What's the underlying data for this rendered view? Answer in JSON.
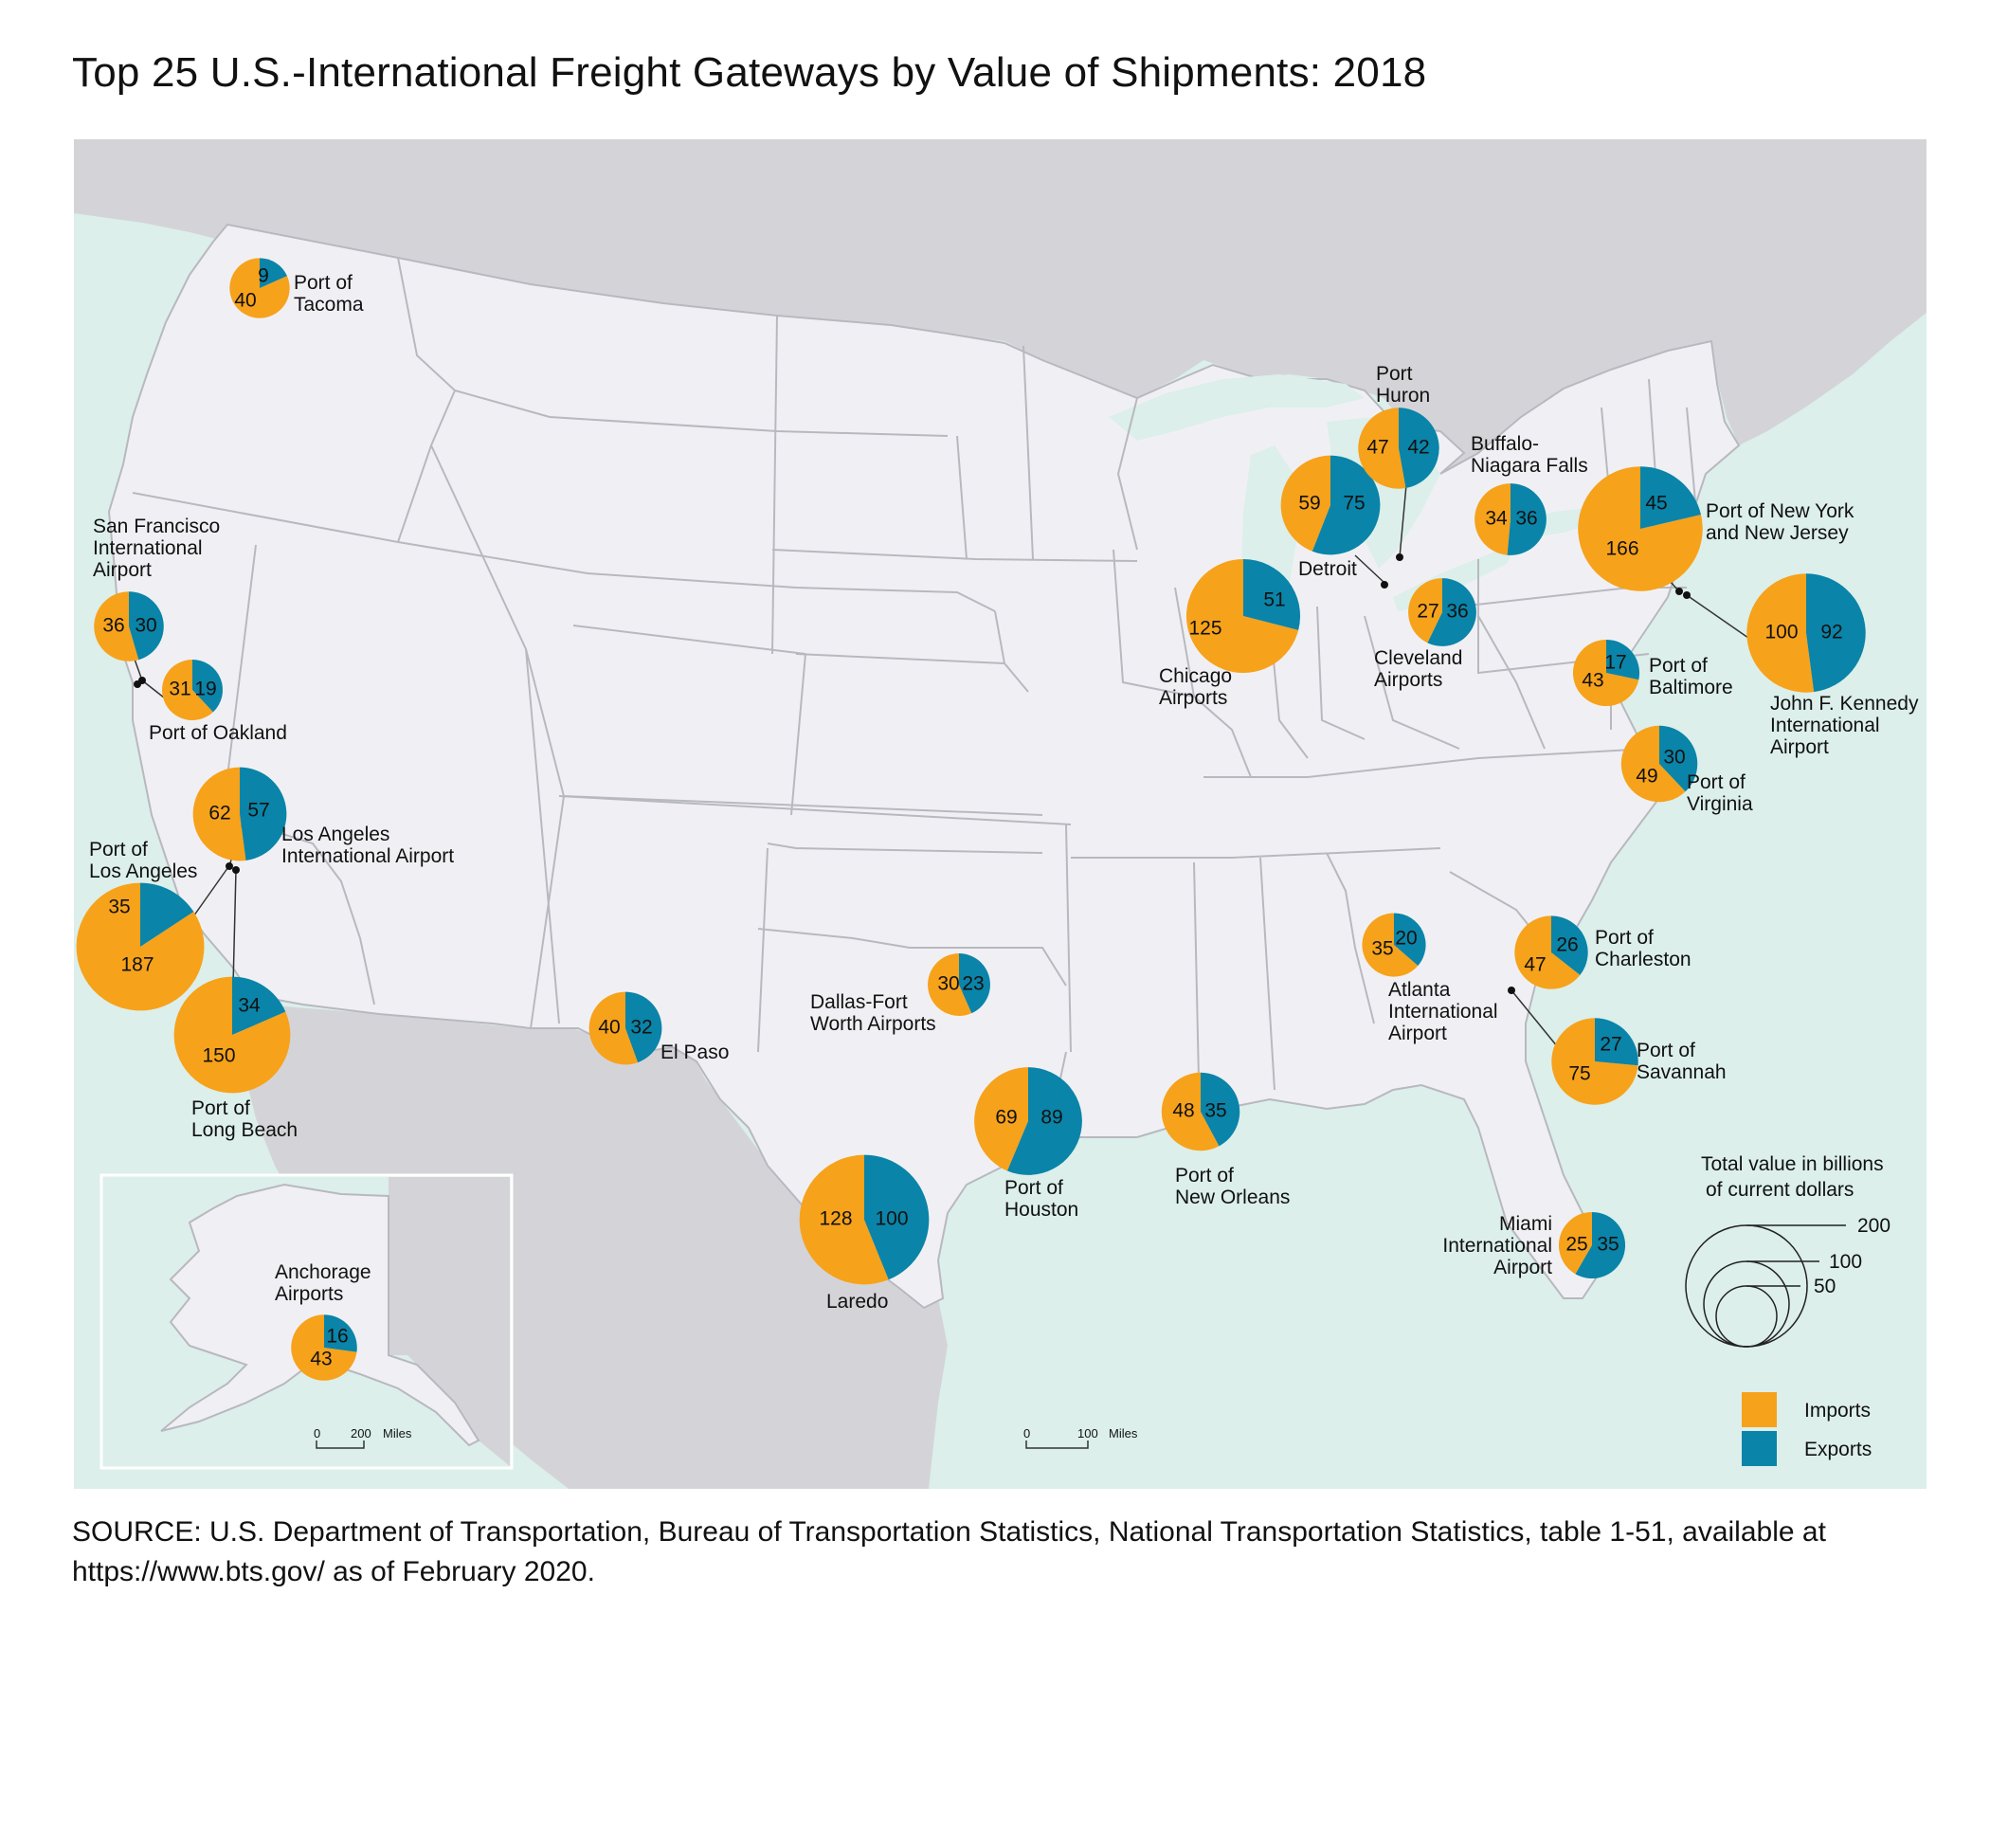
{
  "title": "Top 25 U.S.-International Freight Gateways by Value of Shipments: 2018",
  "source": {
    "line1": "SOURCE: U.S. Department of Transportation, Bureau of Transportation Statistics, National Transportation Statistics, table 1-51, available at",
    "line2": "https://www.bts.gov/ as of February 2020."
  },
  "colors": {
    "imports": "#F7A21B",
    "exports": "#0A84A8",
    "water": "#DCEFEA",
    "canada_mexico": "#D4D4D8",
    "us_land": "#F0F0F4",
    "borders": "#B8B8C0"
  },
  "legend": {
    "title_line1": "Total value in billions",
    "title_line2": "of current dollars",
    "sizes": [
      "200",
      "100",
      "50"
    ],
    "imports_label": "Imports",
    "exports_label": "Exports"
  },
  "scale_main": {
    "zero": "0",
    "value": "100",
    "unit": "Miles"
  },
  "scale_inset": {
    "zero": "0",
    "value": "200",
    "unit": "Miles"
  },
  "chart_data": {
    "type": "pie",
    "unit": "billions of current dollars",
    "series": [
      {
        "name": "Imports"
      },
      {
        "name": "Exports"
      }
    ],
    "gateways": [
      {
        "name_lines": [
          "Port of",
          "Tacoma"
        ],
        "imports": 40,
        "exports": 9
      },
      {
        "name_lines": [
          "San Francisco",
          "International",
          "Airport"
        ],
        "imports": 36,
        "exports": 30
      },
      {
        "name_lines": [
          "Port of Oakland"
        ],
        "imports": 31,
        "exports": 19
      },
      {
        "name_lines": [
          "Los Angeles",
          "International Airport"
        ],
        "imports": 62,
        "exports": 57
      },
      {
        "name_lines": [
          "Port of",
          "Los Angeles"
        ],
        "imports": 187,
        "exports": 35
      },
      {
        "name_lines": [
          "Port of",
          "Long Beach"
        ],
        "imports": 150,
        "exports": 34
      },
      {
        "name_lines": [
          "El Paso"
        ],
        "imports": 40,
        "exports": 32
      },
      {
        "name_lines": [
          "Dallas-Fort",
          "Worth Airports"
        ],
        "imports": 30,
        "exports": 23
      },
      {
        "name_lines": [
          "Laredo"
        ],
        "imports": 128,
        "exports": 100
      },
      {
        "name_lines": [
          "Port of",
          "Houston"
        ],
        "imports": 69,
        "exports": 89
      },
      {
        "name_lines": [
          "Port of",
          "New Orleans"
        ],
        "imports": 48,
        "exports": 35
      },
      {
        "name_lines": [
          "Chicago",
          "Airports"
        ],
        "imports": 125,
        "exports": 51
      },
      {
        "name_lines": [
          "Detroit"
        ],
        "imports": 59,
        "exports": 75
      },
      {
        "name_lines": [
          "Port",
          "Huron"
        ],
        "imports": 47,
        "exports": 42
      },
      {
        "name_lines": [
          "Buffalo-",
          "Niagara Falls"
        ],
        "imports": 34,
        "exports": 36
      },
      {
        "name_lines": [
          "Cleveland",
          "Airports"
        ],
        "imports": 27,
        "exports": 36
      },
      {
        "name_lines": [
          "Port of New York",
          "and New Jersey"
        ],
        "imports": 166,
        "exports": 45
      },
      {
        "name_lines": [
          "John F. Kennedy",
          "International",
          "Airport"
        ],
        "imports": 100,
        "exports": 92
      },
      {
        "name_lines": [
          "Port of",
          "Baltimore"
        ],
        "imports": 43,
        "exports": 17
      },
      {
        "name_lines": [
          "Port of",
          "Virginia"
        ],
        "imports": 49,
        "exports": 30
      },
      {
        "name_lines": [
          "Atlanta",
          "International",
          "Airport"
        ],
        "imports": 35,
        "exports": 20
      },
      {
        "name_lines": [
          "Port of",
          "Charleston"
        ],
        "imports": 47,
        "exports": 26
      },
      {
        "name_lines": [
          "Port of",
          "Savannah"
        ],
        "imports": 75,
        "exports": 27
      },
      {
        "name_lines": [
          "Miami",
          "International",
          "Airport"
        ],
        "imports": 25,
        "exports": 35
      },
      {
        "name_lines": [
          "Anchorage",
          "Airports"
        ],
        "imports": 43,
        "exports": 16
      }
    ]
  }
}
